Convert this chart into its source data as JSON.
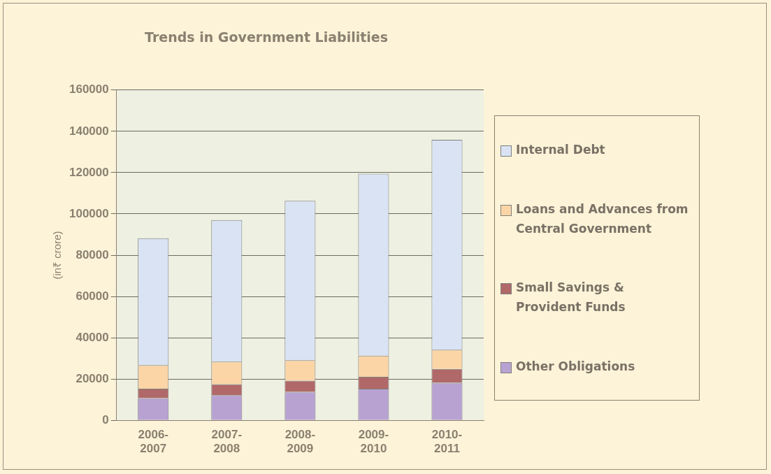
{
  "chart_data": {
    "type": "bar",
    "title": "Trends in Government Liabilities",
    "ylabel": "(in₹ crore)",
    "categories": [
      "2006-2007",
      "2007-2008",
      "2008-2009",
      "2009-2010",
      "2010-2011"
    ],
    "stacked": true,
    "legend": "right",
    "grid": "y",
    "ylim": [
      0,
      160000
    ],
    "yticks": [
      0,
      20000,
      40000,
      60000,
      80000,
      100000,
      120000,
      140000,
      160000
    ],
    "series": [
      {
        "name": "Other Obligations",
        "color": "#b8a2d2",
        "values": [
          10700,
          12200,
          13800,
          15300,
          18200
        ]
      },
      {
        "name": "Small Savings & Provident Funds",
        "color": "#b06868",
        "values": [
          4600,
          5300,
          5400,
          5800,
          6700
        ]
      },
      {
        "name": "Loans and Advances from Central Government",
        "color": "#fbd5a6",
        "values": [
          11400,
          10900,
          9900,
          10200,
          9300
        ]
      },
      {
        "name": "Internal Debt",
        "color": "#dae3f3",
        "values": [
          61500,
          68600,
          77200,
          88200,
          101700
        ]
      }
    ]
  }
}
